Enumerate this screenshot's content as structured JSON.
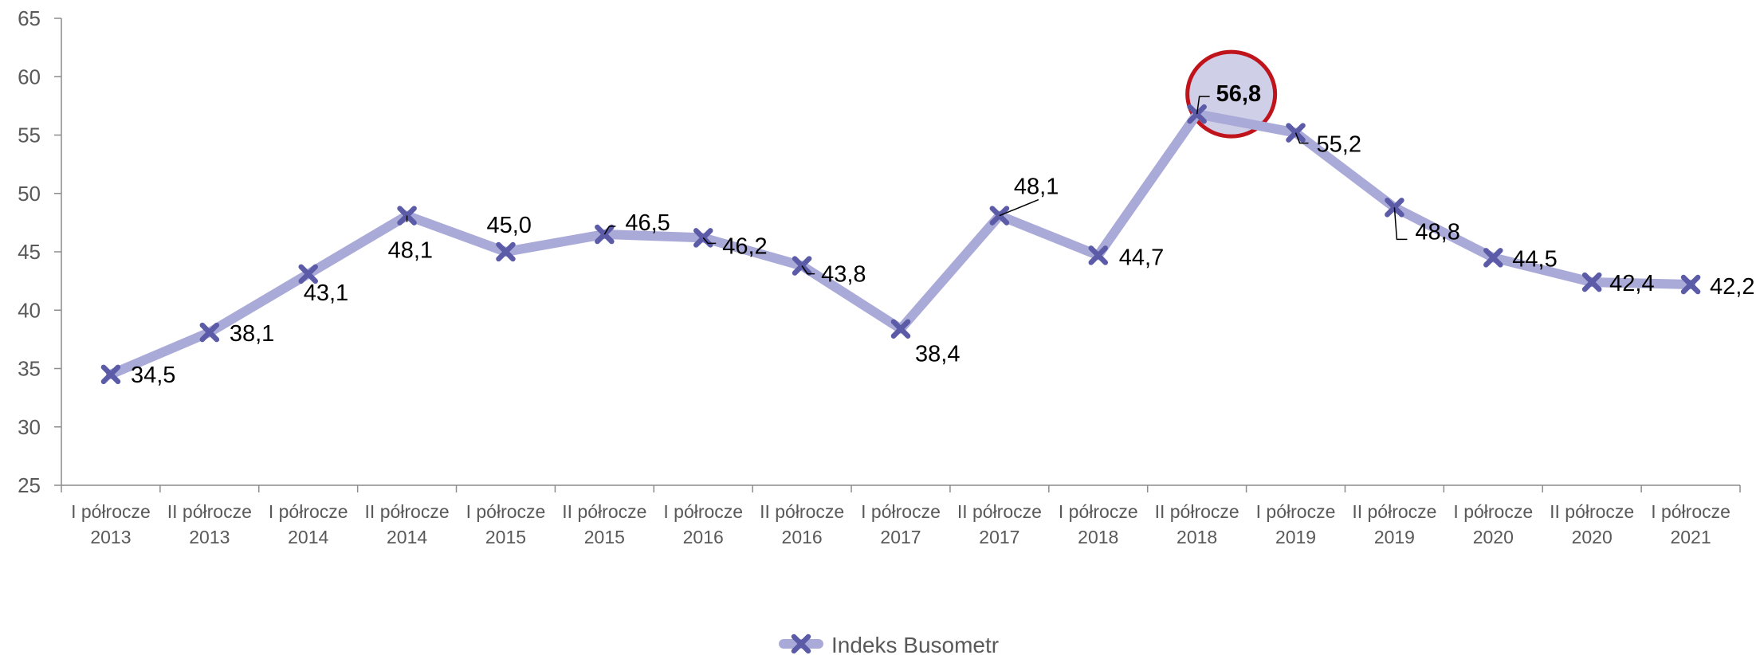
{
  "chart_data": {
    "type": "line",
    "ylim": [
      25,
      65
    ],
    "yticks": [
      25,
      30,
      35,
      40,
      45,
      50,
      55,
      60,
      65
    ],
    "ytick_labels": [
      "25",
      "30",
      "35",
      "40",
      "45",
      "50",
      "55",
      "60",
      "65"
    ],
    "categories": [
      [
        "I półrocze",
        "2013"
      ],
      [
        "II półrocze",
        "2013"
      ],
      [
        "I półrocze",
        "2014"
      ],
      [
        "II półrocze",
        "2014"
      ],
      [
        "I półrocze",
        "2015"
      ],
      [
        "II półrocze",
        "2015"
      ],
      [
        "I półrocze",
        "2016"
      ],
      [
        "II półrocze",
        "2016"
      ],
      [
        "I półrocze",
        "2017"
      ],
      [
        "II półrocze",
        "2017"
      ],
      [
        "I półrocze",
        "2018"
      ],
      [
        "II półrocze",
        "2018"
      ],
      [
        "I półrocze",
        "2019"
      ],
      [
        "II półrocze",
        "2019"
      ],
      [
        "I półrocze",
        "2020"
      ],
      [
        "II półrocze",
        "2020"
      ],
      [
        "I półrocze",
        "2021"
      ]
    ],
    "series": [
      {
        "name": "Indeks Busometr",
        "values": [
          34.5,
          38.1,
          43.1,
          48.1,
          45.0,
          46.5,
          46.2,
          43.8,
          38.4,
          48.1,
          44.7,
          56.8,
          55.2,
          48.8,
          44.5,
          42.4,
          42.2
        ],
        "labels": [
          "34,5",
          "38,1",
          "43,1",
          "48,1",
          "45,0",
          "46,5",
          "46,2",
          "43,8",
          "38,4",
          "48,1",
          "44,7",
          "56,8",
          "55,2",
          "48,8",
          "44,5",
          "42,4",
          "42,2"
        ]
      }
    ],
    "highlight": {
      "point": "II półrocze 2018",
      "label_bold": true
    },
    "legend": {
      "position": "bottom",
      "entries": [
        "Indeks Busometr"
      ]
    },
    "grid": false,
    "colors": {
      "line": "#aaaad8",
      "marker": "#5b5ba8",
      "axis": "#8c8c8c",
      "highlight_ring": "#c0141c",
      "highlight_fill": "#cfcfe8"
    },
    "marker_icon": "x-marker"
  }
}
